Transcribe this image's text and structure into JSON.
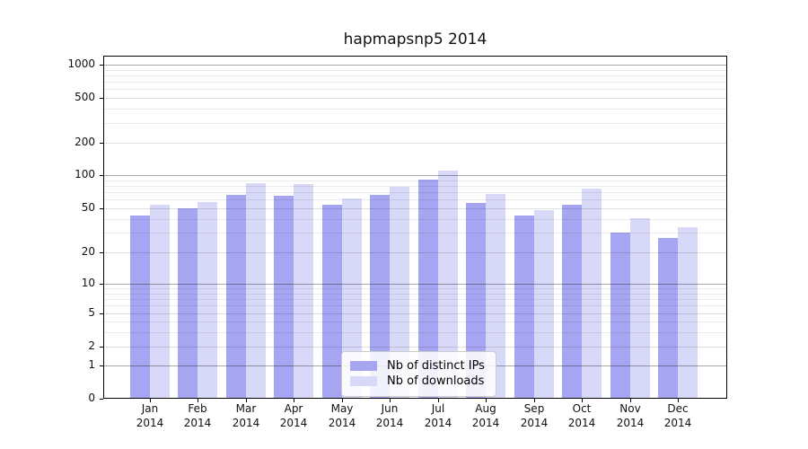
{
  "chart_data": {
    "type": "bar",
    "title": "hapmapsnp5 2014",
    "months": [
      "Jan",
      "Feb",
      "Mar",
      "Apr",
      "May",
      "Jun",
      "Jul",
      "Aug",
      "Sep",
      "Oct",
      "Nov",
      "Dec"
    ],
    "year": "2014",
    "series": [
      {
        "name": "Nb of distinct IPs",
        "color": "#a5a5f1",
        "values": [
          43,
          50,
          66,
          65,
          54,
          66,
          91,
          56,
          43,
          54,
          30,
          27
        ]
      },
      {
        "name": "Nb of downloads",
        "color": "#d8d8f8",
        "values": [
          54,
          57,
          85,
          83,
          62,
          78,
          110,
          67,
          48,
          75,
          41,
          34
        ]
      }
    ],
    "yticks": [
      1000,
      500,
      200,
      100,
      50,
      20,
      10,
      5,
      2,
      1,
      0
    ],
    "ylim": [
      0,
      1000
    ],
    "scale": "symlog",
    "grid": true,
    "legend_position": "lower-center-inside"
  },
  "colors": {
    "background": "#ffffff",
    "bar_distinct_ips": "#a5a5f1",
    "bar_downloads": "#d8d8f8",
    "axis": "#000000",
    "grid_major": "#aeaeae",
    "grid_minor": "#e9e9e9",
    "text": "#111111",
    "legend_border": "#cccccc"
  }
}
